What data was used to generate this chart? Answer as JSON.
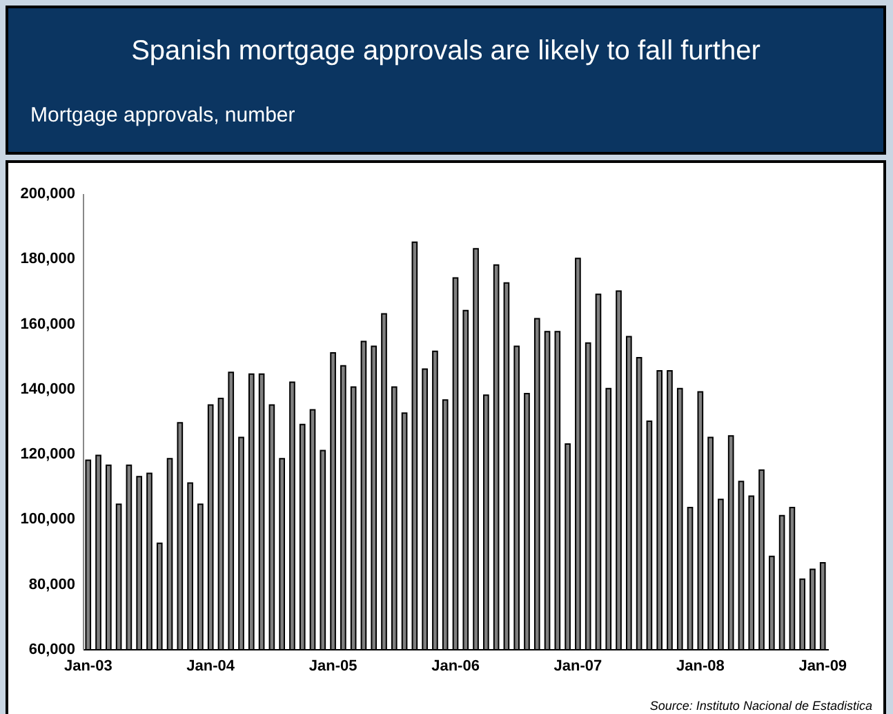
{
  "chart_data": {
    "type": "bar",
    "title": "Spanish mortgage approvals are likely to fall further",
    "subtitle": "Mortgage approvals, number",
    "categories": [
      "Jan-03",
      null,
      null,
      null,
      null,
      null,
      null,
      null,
      null,
      null,
      null,
      null,
      "Jan-04",
      null,
      null,
      null,
      null,
      null,
      null,
      null,
      null,
      null,
      null,
      null,
      "Jan-05",
      null,
      null,
      null,
      null,
      null,
      null,
      null,
      null,
      null,
      null,
      null,
      "Jan-06",
      null,
      null,
      null,
      null,
      null,
      null,
      null,
      null,
      null,
      null,
      null,
      "Jan-07",
      null,
      null,
      null,
      null,
      null,
      null,
      null,
      null,
      null,
      null,
      null,
      "Jan-08",
      null,
      null,
      null,
      null,
      null,
      null,
      null,
      null,
      null,
      null,
      null,
      "Jan-09"
    ],
    "values": [
      118000,
      119500,
      116500,
      104500,
      116500,
      113000,
      114000,
      92500,
      118500,
      129500,
      111000,
      104500,
      135000,
      137000,
      145000,
      125000,
      144500,
      144500,
      135000,
      118500,
      142000,
      129000,
      133500,
      121000,
      151000,
      147000,
      140500,
      154500,
      153000,
      163000,
      140500,
      132500,
      185000,
      146000,
      151500,
      136500,
      174000,
      164000,
      183000,
      138000,
      178000,
      172500,
      153000,
      138500,
      161500,
      157500,
      157500,
      123000,
      180000,
      154000,
      169000,
      140000,
      170000,
      156000,
      149500,
      130000,
      145500,
      145500,
      140000,
      103500,
      139000,
      125000,
      106000,
      125500,
      111500,
      107000,
      115000,
      88500,
      101000,
      103500,
      81500,
      84500,
      86500
    ],
    "color": "#808080",
    "ylim": [
      60000,
      200000
    ],
    "yticks": [
      {
        "value": 60000,
        "label": "60,000"
      },
      {
        "value": 80000,
        "label": "80,000"
      },
      {
        "value": 100000,
        "label": "100,000"
      },
      {
        "value": 120000,
        "label": "120,000"
      },
      {
        "value": 140000,
        "label": "140,000"
      },
      {
        "value": 160000,
        "label": "160,000"
      },
      {
        "value": 180000,
        "label": "180,000"
      },
      {
        "value": 200000,
        "label": "200,000"
      }
    ],
    "grid": false,
    "annotations": [
      "Source: Instituto Nacional de Estadistica"
    ]
  }
}
